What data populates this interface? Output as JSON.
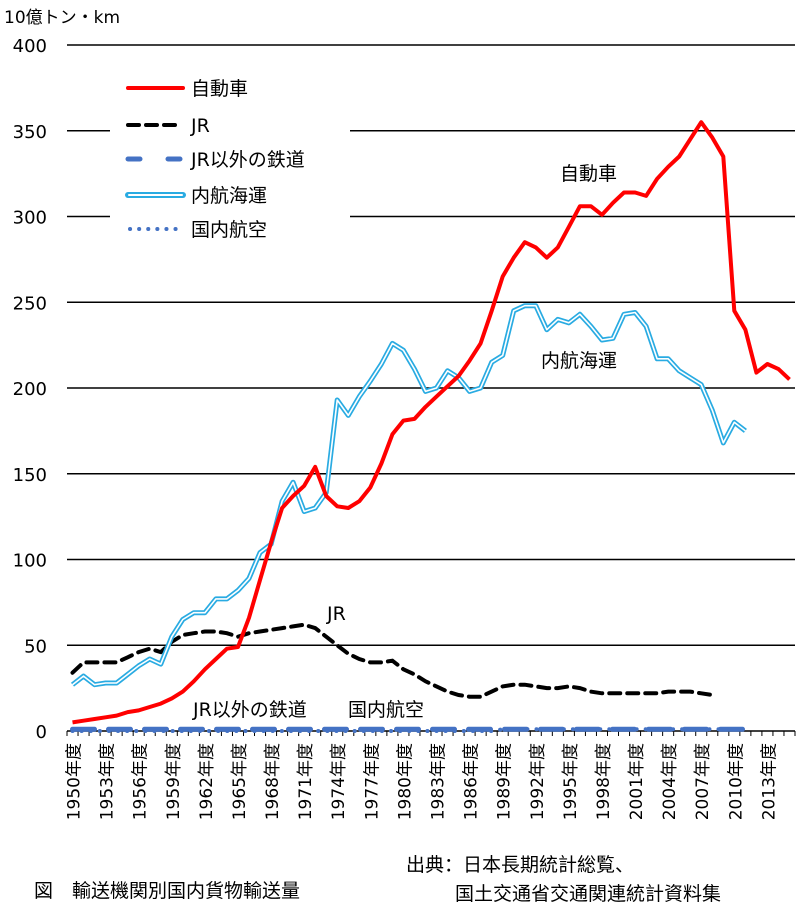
{
  "chart_data": {
    "type": "line",
    "ylabel": "10億トン・km",
    "ylim": [
      0,
      400
    ],
    "yticks": [
      0,
      50,
      100,
      150,
      200,
      250,
      300,
      350,
      400
    ],
    "grid": true,
    "legend_position": "top-left",
    "year_suffix": "年度",
    "x": [
      1950,
      1951,
      1952,
      1953,
      1954,
      1955,
      1956,
      1957,
      1958,
      1959,
      1960,
      1961,
      1962,
      1963,
      1964,
      1965,
      1966,
      1967,
      1968,
      1969,
      1970,
      1971,
      1972,
      1973,
      1974,
      1975,
      1976,
      1977,
      1978,
      1979,
      1980,
      1981,
      1982,
      1983,
      1984,
      1985,
      1986,
      1987,
      1988,
      1989,
      1990,
      1991,
      1992,
      1993,
      1994,
      1995,
      1996,
      1997,
      1998,
      1999,
      2000,
      2001,
      2002,
      2003,
      2004,
      2005,
      2006,
      2007,
      2008,
      2009,
      2010,
      2011,
      2012,
      2013,
      2014,
      2015
    ],
    "xtick_labels": [
      "1950年度",
      "1953年度",
      "1956年度",
      "1959年度",
      "1962年度",
      "1965年度",
      "1968年度",
      "1971年度",
      "1974年度",
      "1977年度",
      "1980年度",
      "1983年度",
      "1986年度",
      "1989年度",
      "1992年度",
      "1995年度",
      "1998年度",
      "2001年度",
      "2004年度",
      "2007年度",
      "2010年度",
      "2013年度"
    ],
    "series": [
      {
        "name": "自動車",
        "color": "#ff0000",
        "style": "solid",
        "values": [
          5,
          6,
          7,
          8,
          9,
          11,
          12,
          14,
          16,
          19,
          23,
          29,
          36,
          42,
          48,
          49,
          66,
          88,
          110,
          130,
          137,
          143,
          154,
          137,
          131,
          130,
          134,
          142,
          156,
          173,
          181,
          182,
          189,
          195,
          201,
          207,
          216,
          226,
          245,
          265,
          276,
          285,
          282,
          276,
          282,
          294,
          306,
          306,
          301,
          308,
          314,
          314,
          312,
          322,
          329,
          335,
          345,
          355,
          346,
          335,
          245,
          234,
          209,
          214,
          211,
          205
        ]
      },
      {
        "name": "JR",
        "color": "#000000",
        "style": "dashed",
        "values": [
          34,
          40,
          40,
          40,
          40,
          43,
          46,
          48,
          46,
          52,
          56,
          57,
          58,
          58,
          57,
          55,
          57,
          58,
          59,
          60,
          61,
          62,
          60,
          55,
          50,
          45,
          42,
          40,
          40,
          41,
          36,
          33,
          29,
          26,
          23,
          21,
          20,
          20,
          23,
          26,
          27,
          27,
          26,
          25,
          25,
          26,
          25,
          23,
          22,
          22,
          22,
          22,
          22,
          22,
          23,
          23,
          23,
          22,
          21,
          null,
          null,
          null,
          null,
          null,
          null,
          null
        ]
      },
      {
        "name": "JR以外の鉄道",
        "color": "#4472c4",
        "style": "longdash",
        "values": [
          1,
          1,
          1,
          1,
          1,
          1,
          1,
          1,
          1,
          1,
          1,
          1,
          1,
          1,
          1,
          1,
          1,
          1,
          1,
          1,
          1,
          1,
          1,
          1,
          1,
          1,
          1,
          1,
          1,
          1,
          1,
          1,
          1,
          1,
          1,
          1,
          1,
          1,
          1,
          1,
          1,
          1,
          1,
          1,
          1,
          1,
          1,
          1,
          1,
          1,
          1,
          1,
          1,
          1,
          1,
          1,
          1,
          1,
          1,
          1,
          1,
          1,
          null,
          null,
          null,
          null
        ]
      },
      {
        "name": "内航海運",
        "color": "#29abe2",
        "style": "double",
        "values": [
          27,
          32,
          27,
          28,
          28,
          33,
          38,
          42,
          39,
          55,
          65,
          69,
          69,
          77,
          77,
          82,
          89,
          104,
          109,
          134,
          145,
          128,
          130,
          139,
          193,
          184,
          195,
          204,
          214,
          226,
          222,
          211,
          198,
          200,
          210,
          206,
          198,
          200,
          215,
          219,
          245,
          248,
          248,
          234,
          240,
          238,
          243,
          236,
          228,
          229,
          243,
          244,
          236,
          217,
          217,
          210,
          206,
          202,
          187,
          168,
          180,
          175,
          null,
          null,
          null,
          null
        ]
      },
      {
        "name": "国内航空",
        "color": "#4472c4",
        "style": "dotted",
        "values": [
          0,
          0,
          0,
          0,
          0,
          0,
          0,
          0,
          0,
          0,
          0,
          0,
          0,
          0,
          0,
          0,
          0,
          0,
          0,
          0,
          0,
          0,
          0,
          0,
          0,
          0,
          0,
          0,
          0,
          0,
          0,
          0,
          0,
          0,
          0,
          0,
          0,
          0,
          0,
          1,
          1,
          1,
          1,
          1,
          1,
          1,
          1,
          1,
          1,
          1,
          1,
          1,
          1,
          1,
          1,
          1,
          1,
          1,
          1,
          1,
          1,
          1,
          null,
          null,
          null,
          null
        ]
      }
    ],
    "annotations": [
      "自動車",
      "内航海運",
      "JR",
      "JR以外の鉄道",
      "国内航空"
    ]
  },
  "captions": {
    "figure_title": "図　輸送機関別国内貨物輸送量",
    "source_line1": "出典：日本長期統計総覧、",
    "source_line2": "国土交通省交通関連統計資料集"
  }
}
